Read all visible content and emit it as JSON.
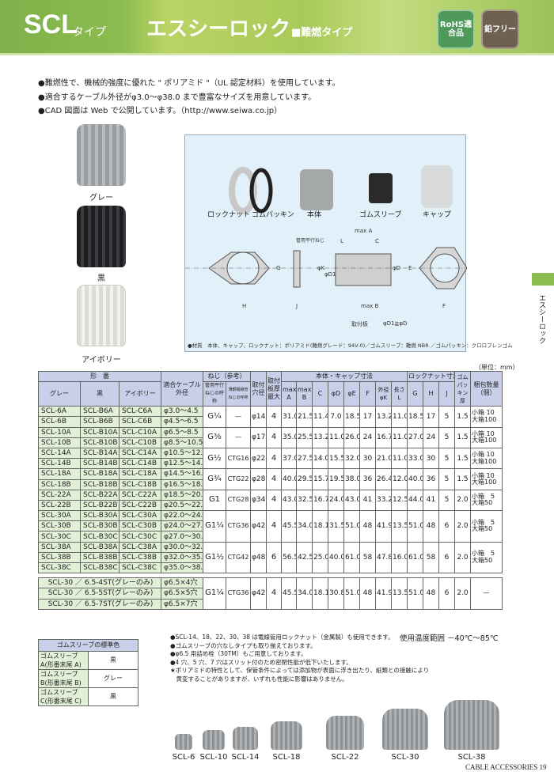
{
  "header": {
    "series": "SCL",
    "series_suffix": "タイプ",
    "title": "エスシーロック",
    "subtitle": "■難燃タイプ",
    "badge_rohs": "RoHS適合品",
    "badge_lead": "鉛フリー",
    "accent": "#8cbc50"
  },
  "bullets": [
    "●難燃性で、機械的強度に優れた \" ポリアミド \"（UL 認定材料）を使用しています。",
    "●適合するケーブル外径がφ3.0～φ38.0 まで豊富なサイズを用意しています。",
    "●CAD 図面は Web で公開しています。（http://www.seiwa.co.jp）"
  ],
  "colors": [
    {
      "label": "グレー",
      "hex": "#a9acaf"
    },
    {
      "label": "黒",
      "hex": "#2a2a2c"
    },
    {
      "label": "アイボリー",
      "hex": "#e6e6e0"
    }
  ],
  "diagram": {
    "parts": [
      "ロックナット",
      "ゴムパッキン",
      "本体",
      "ゴムスリーブ",
      "キャップ"
    ],
    "dims": {
      "maxA": "max A",
      "L": "L",
      "C": "C",
      "thread": "管用平行ねじ",
      "G": "G",
      "K": "φK",
      "D1": "φD1",
      "D": "φD",
      "E": "E",
      "H": "H",
      "J": "J",
      "maxB": "max B",
      "F": "F",
      "plate": "取付板",
      "rel": "φD1≧φD"
    },
    "material": "●材質　本体、キャップ、ロックナット：ポリアミド(難燃グレード：94V-0)／ゴムスリーブ：難燃 NBR ／ゴムパッキン：クロロプレンゴム"
  },
  "side_tab": "エスシーロック",
  "unit": "（単位：mm）",
  "table": {
    "h": {
      "model": "形　番",
      "gray": "グレー",
      "black": "黒",
      "ivory": "アイボリー",
      "cable": "適合ケーブル外径",
      "thread": "ねじ（参考）",
      "pipe": "管用平行ねじの呼称",
      "ctg": "薄鋼電線管ねじの呼称",
      "hole": "取付穴径",
      "thick": "取付板厚最大",
      "body": "本体・キャップ寸法",
      "A": "max A",
      "B": "max B",
      "C": "C",
      "D": "φD",
      "E": "φE",
      "F": "F",
      "K": "外径φK",
      "L": "長さL",
      "nut": "ロックナット寸法",
      "G": "G",
      "H": "H",
      "J": "J",
      "gum": "ゴムパッキン厚",
      "pack": "梱包数量（個）"
    },
    "groups": [
      {
        "rows": [
          [
            "SCL-6A",
            "SCL-B6A",
            "SCL-C6A",
            "φ3.0～4.5"
          ],
          [
            "SCL-6B",
            "SCL-B6B",
            "SCL-C6B",
            "φ4.5～6.5"
          ]
        ],
        "thread": "G¼",
        "ctg": "—",
        "hole": "φ14",
        "thick": "4",
        "dims": [
          "31.0",
          "21.5",
          "11.4",
          "7.0",
          "18.5",
          "17",
          "13.2",
          "11.0",
          "18.5",
          "17",
          "5",
          "1.5"
        ],
        "pack": [
          "小箱 10",
          "大箱100"
        ]
      },
      {
        "rows": [
          [
            "SCL-10A",
            "SCL-B10A",
            "SCL-C10A",
            "φ6.5～8.5"
          ],
          [
            "SCL-10B",
            "SCL-B10B",
            "SCL-C10B",
            "φ8.5～10.5"
          ]
        ],
        "thread": "G⅜",
        "ctg": "—",
        "hole": "φ17",
        "thick": "4",
        "dims": [
          "35.0",
          "25.5",
          "13.2",
          "11.0",
          "26.0",
          "24",
          "16.7",
          "11.0",
          "27.0",
          "24",
          "5",
          "1.5"
        ],
        "pack": [
          "小箱 10",
          "大箱100"
        ]
      },
      {
        "rows": [
          [
            "SCL-14A",
            "SCL-B14A",
            "SCL-C14A",
            "φ10.5～12.5"
          ],
          [
            "SCL-14B",
            "SCL-B14B",
            "SCL-C14B",
            "φ12.5～14.5"
          ]
        ],
        "thread": "G½",
        "ctg": "CTG16",
        "hole": "φ22",
        "thick": "4",
        "dims": [
          "37.0",
          "27.5",
          "14.0",
          "15.5",
          "32.0",
          "30",
          "21.0",
          "11.0",
          "33.0",
          "30",
          "5",
          "1.5"
        ],
        "pack": [
          "小箱 10",
          "大箱100"
        ]
      },
      {
        "rows": [
          [
            "SCL-18A",
            "SCL-B18A",
            "SCL-C18A",
            "φ14.5～16.5"
          ],
          [
            "SCL-18B",
            "SCL-B18B",
            "SCL-C18B",
            "φ16.5～18.5"
          ]
        ],
        "thread": "G¾",
        "ctg": "CTG22",
        "hole": "φ28",
        "thick": "4",
        "dims": [
          "40.0",
          "29.5",
          "15.7",
          "19.5",
          "38.0",
          "36",
          "26.4",
          "12.0",
          "40.0",
          "36",
          "5",
          "1.5"
        ],
        "pack": [
          "小箱 10",
          "大箱100"
        ]
      },
      {
        "rows": [
          [
            "SCL-22A",
            "SCL-B22A",
            "SCL-C22A",
            "φ18.5～20.5"
          ],
          [
            "SCL-22B",
            "SCL-B22B",
            "SCL-C22B",
            "φ20.5～22.5"
          ]
        ],
        "thread": "G1",
        "ctg": "CTG28",
        "hole": "φ34",
        "thick": "4",
        "dims": [
          "43.0",
          "32.5",
          "16.7",
          "24.0",
          "43.0",
          "41",
          "33.2",
          "12.5",
          "44.0",
          "41",
          "5",
          "2.0"
        ],
        "pack": [
          "小箱　5",
          "大箱50"
        ]
      },
      {
        "rows": [
          [
            "SCL-30A",
            "SCL-B30A",
            "SCL-C30A",
            "φ22.0～24.0"
          ],
          [
            "SCL-30B",
            "SCL-B30B",
            "SCL-C30B",
            "φ24.0～27.0"
          ],
          [
            "SCL-30C",
            "SCL-B30C",
            "SCL-C30C",
            "φ27.0～30.0"
          ]
        ],
        "thread": "G1¼",
        "ctg": "CTG36",
        "hole": "φ42",
        "thick": "4",
        "dims": [
          "45.5",
          "34.0",
          "18.1",
          "31.5",
          "51.0",
          "48",
          "41.9",
          "13.5",
          "51.0",
          "48",
          "6",
          "2.0"
        ],
        "pack": [
          "小箱　5",
          "大箱50"
        ]
      },
      {
        "rows": [
          [
            "SCL-38A",
            "SCL-B38A",
            "SCL-C38A",
            "φ30.0～32.0"
          ],
          [
            "SCL-38B",
            "SCL-B38B",
            "SCL-C38B",
            "φ32.0～35.0"
          ],
          [
            "SCL-38C",
            "SCL-B38C",
            "SCL-C38C",
            "φ35.0～38.0"
          ]
        ],
        "thread": "G1½",
        "ctg": "CTG42",
        "hole": "φ48",
        "thick": "6",
        "dims": [
          "56.5",
          "42.5",
          "25.0",
          "40.0",
          "61.0",
          "58",
          "47.8",
          "16.0",
          "61.0",
          "58",
          "6",
          "2.0"
        ],
        "pack": [
          "小箱　5",
          "大箱50"
        ]
      }
    ],
    "special": {
      "rows": [
        [
          "SCL-30 ／ 6.5-4ST(グレーのみ)",
          "φ6.5×4穴"
        ],
        [
          "SCL-30 ／ 6.5-5ST(グレーのみ)",
          "φ6.5×5穴"
        ],
        [
          "SCL-30 ／ 6.5-7ST(グレーのみ)",
          "φ6.5×7穴"
        ]
      ],
      "thread": "G1¼",
      "ctg": "CTG36",
      "hole": "φ42",
      "thick": "4",
      "dims": [
        "45.5",
        "34.0",
        "18.1",
        "30.8",
        "51.0",
        "48",
        "41.9",
        "13.5",
        "51.0",
        "48",
        "6",
        "2.0"
      ],
      "pack": [
        "—"
      ]
    }
  },
  "sleeve_colors": {
    "title": "ゴムスリーブの標準色",
    "rows": [
      [
        "ゴムスリーブ A(形番末尾 A)",
        "黒"
      ],
      [
        "ゴムスリーブ B(形番末尾 B)",
        "グレー"
      ],
      [
        "ゴムスリーブ C(形番末尾 C)",
        "黒"
      ]
    ]
  },
  "notes": [
    "●SCL-14、18、22、30、38 は電線管用ロックナット（金属製）も使用できます。",
    "●ゴムスリーブの穴なしタイプも取り揃えております。",
    "●φ6.5 用詰め栓（30TM）もご用意しております。",
    "●4 穴、5 穴、7 穴はスリット付のため密閉性能が低下いたします。",
    "★ポリアミドの特性として、保管条件によっては添加物が表面に浮き出たり、紙類との接触により",
    "　黄変することがありますが、いずれも性能に影響はありません。"
  ],
  "temp": "使用温度範囲 －40℃～85℃",
  "sizes": [
    "SCL-6",
    "SCL-10",
    "SCL-14",
    "SCL-18",
    "SCL-22",
    "SCL-30",
    "SCL-38"
  ],
  "footer": "CABLE ACCESSORIES 19"
}
